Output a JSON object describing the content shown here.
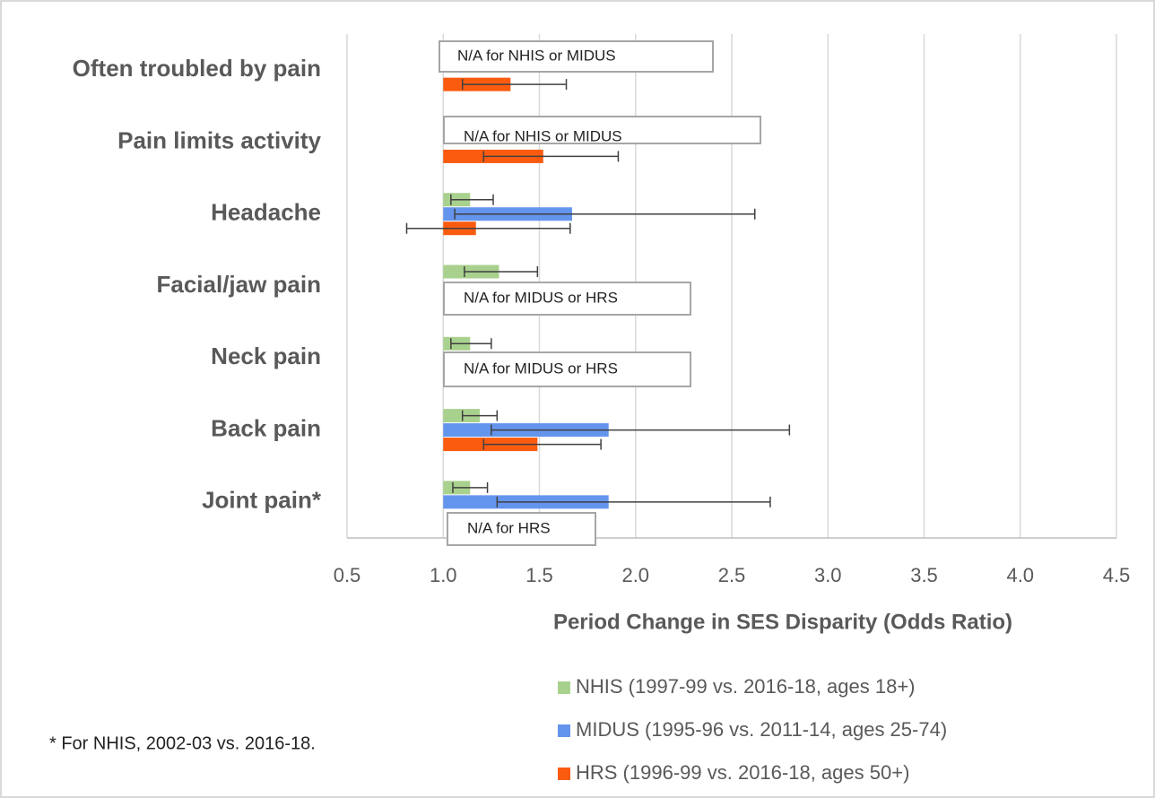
{
  "chart_data": {
    "type": "bar",
    "orientation": "horizontal",
    "categories": [
      "Often troubled by pain",
      "Pain limits activity",
      "Headache",
      "Facial/jaw pain",
      "Neck pain",
      "Back pain",
      "Joint pain*"
    ],
    "series": [
      {
        "name": "NHIS (1997-99 vs. 2016-18, ages 18+)",
        "color": "#a9d18e",
        "values": [
          null,
          null,
          1.14,
          1.29,
          1.14,
          1.19,
          1.14
        ],
        "ci_low": [
          null,
          null,
          1.04,
          1.11,
          1.04,
          1.1,
          1.05
        ],
        "ci_high": [
          null,
          null,
          1.26,
          1.49,
          1.25,
          1.28,
          1.23
        ]
      },
      {
        "name": "MIDUS (1995-96 vs. 2011-14, ages 25-74)",
        "color": "#6495ed",
        "values": [
          null,
          null,
          1.67,
          null,
          null,
          1.86,
          1.86
        ],
        "ci_low": [
          null,
          null,
          1.06,
          null,
          null,
          1.25,
          1.28
        ],
        "ci_high": [
          null,
          null,
          2.62,
          null,
          null,
          2.8,
          2.7
        ]
      },
      {
        "name": "HRS (1996-99 vs. 2016-18, ages 50+)",
        "color": "#fa5b0f",
        "values": [
          1.35,
          1.52,
          1.17,
          null,
          null,
          1.49,
          null
        ],
        "ci_low": [
          1.1,
          1.21,
          0.81,
          null,
          null,
          1.21,
          null
        ],
        "ci_high": [
          1.64,
          1.91,
          1.66,
          null,
          null,
          1.82,
          null
        ]
      }
    ],
    "baseline": 1.0,
    "xlim": [
      0.5,
      4.5
    ],
    "xticks": [
      {
        "value": 0.5,
        "label": "0.5"
      },
      {
        "value": 1.0,
        "label": "1.0"
      },
      {
        "value": 1.5,
        "label": "1.5"
      },
      {
        "value": 2.0,
        "label": "2.0"
      },
      {
        "value": 2.5,
        "label": "2.5"
      },
      {
        "value": 3.0,
        "label": "3.0"
      },
      {
        "value": 3.5,
        "label": "3.5"
      },
      {
        "value": 4.0,
        "label": "4.0"
      },
      {
        "value": 4.5,
        "label": "4.5"
      }
    ],
    "xlabel": "Period Change in SES Disparity (Odds Ratio)",
    "grid": true,
    "annotations": [
      "N/A for NHIS or MIDUS",
      "N/A for NHIS or MIDUS",
      "N/A for MIDUS or HRS",
      "N/A for MIDUS or HRS",
      "N/A for HRS"
    ],
    "footnote": "* For NHIS, 2002-03 vs. 2016-18."
  }
}
